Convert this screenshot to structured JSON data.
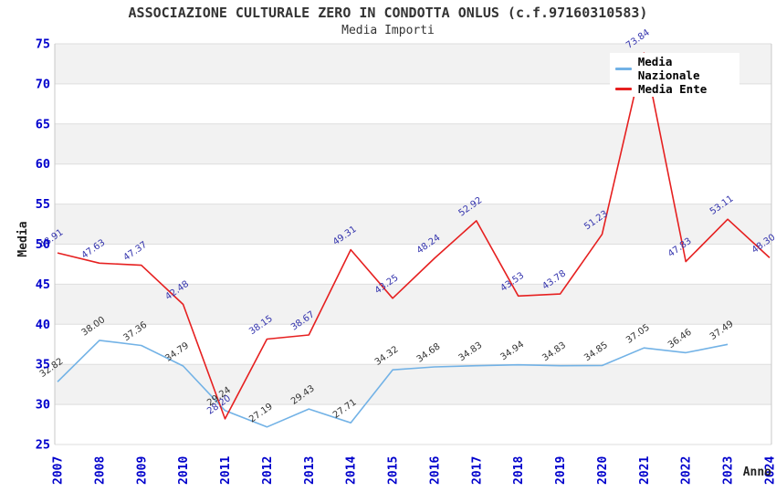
{
  "header": {
    "title": "ASSOCIAZIONE CULTURALE ZERO IN CONDOTTA ONLUS (c.f.97160310583)",
    "subtitle": "Media Importi"
  },
  "chart_data": {
    "type": "line",
    "title": "ASSOCIAZIONE CULTURALE ZERO IN CONDOTTA ONLUS (c.f.97160310583)",
    "subtitle": "Media Importi",
    "xlabel": "Anno",
    "ylabel": "Media",
    "ylim": [
      25,
      75
    ],
    "ytick_step": 5,
    "grid": true,
    "legend_position": "top-right",
    "categories": [
      "2007",
      "2008",
      "2009",
      "2010",
      "2011",
      "2012",
      "2013",
      "2014",
      "2015",
      "2016",
      "2017",
      "2018",
      "2019",
      "2020",
      "2021",
      "2022",
      "2023",
      "2024"
    ],
    "series": [
      {
        "name": "Media Nazionale",
        "color": "#72b2e6",
        "label_color": "#333333",
        "values": [
          32.82,
          38.0,
          37.36,
          34.79,
          29.24,
          27.19,
          29.43,
          27.71,
          34.32,
          34.68,
          34.83,
          34.94,
          34.83,
          34.85,
          37.05,
          36.46,
          37.49,
          null
        ]
      },
      {
        "name": "Media Ente",
        "color": "#e62020",
        "label_color": "#3333ad",
        "values": [
          48.91,
          47.63,
          47.37,
          42.48,
          28.2,
          38.15,
          38.67,
          49.31,
          43.25,
          48.24,
          52.92,
          43.53,
          43.78,
          51.23,
          73.84,
          47.83,
          53.11,
          48.3
        ]
      }
    ],
    "colors": {
      "band": "#f2f2f2",
      "grid": "#dedede",
      "border": "#c8c8c8",
      "tick_label": "#0000cc",
      "axis_title": "#222222",
      "title": "#333333",
      "legend_bg": "#ffffff"
    }
  }
}
